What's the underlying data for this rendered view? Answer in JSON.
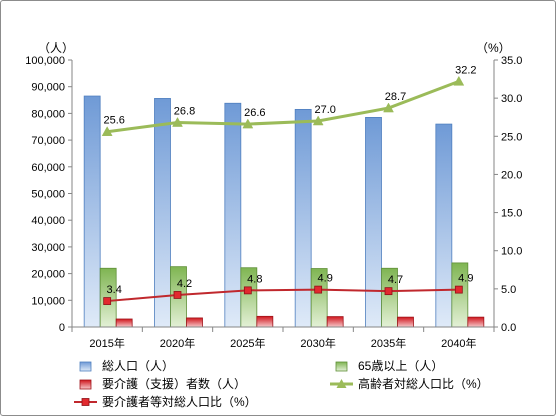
{
  "chart_data": {
    "type": "bar",
    "categories": [
      "2015年",
      "2020年",
      "2025年",
      "2030年",
      "2035年",
      "2040年"
    ],
    "left_axis": {
      "unit": "（人）",
      "min": 0,
      "max": 100000,
      "step": 10000,
      "tick_labels": [
        "0",
        "10,000",
        "20,000",
        "30,000",
        "40,000",
        "50,000",
        "60,000",
        "70,000",
        "80,000",
        "90,000",
        "100,000"
      ]
    },
    "right_axis": {
      "unit": "（%）",
      "min": 0,
      "max": 35,
      "step": 5,
      "tick_labels": [
        "0.0",
        "5.0",
        "10.0",
        "15.0",
        "20.0",
        "25.0",
        "30.0",
        "35.0"
      ]
    },
    "grid": false,
    "legend_position": "bottom",
    "series": [
      {
        "name": "総人口（人）",
        "kind": "bar",
        "axis": "left",
        "color": "#8eb4e3",
        "values": [
          86500,
          85600,
          83800,
          81500,
          78500,
          76000
        ]
      },
      {
        "name": "65歳以上（人）",
        "kind": "bar",
        "axis": "left",
        "color": "#9bcb6b",
        "values": [
          22000,
          22600,
          22200,
          21900,
          22000,
          24000
        ]
      },
      {
        "name": "要介護（支援）者数（人）",
        "kind": "bar",
        "axis": "left",
        "color": "#e2292e",
        "values": [
          3000,
          3400,
          4000,
          3900,
          3700,
          3700
        ]
      },
      {
        "name": "高齢者対総人口比（%）",
        "kind": "line",
        "axis": "right",
        "color": "#9bbb59",
        "marker": "triangle",
        "values": [
          25.6,
          26.8,
          26.6,
          27.0,
          28.7,
          32.2
        ],
        "labels": [
          "25.6",
          "26.8",
          "26.6",
          "27.0",
          "28.7",
          "32.2"
        ]
      },
      {
        "name": "要介護者等対総人口比（%）",
        "kind": "line",
        "axis": "right",
        "color": "#c0282d",
        "marker": "square",
        "values": [
          3.4,
          4.2,
          4.8,
          4.9,
          4.7,
          4.9
        ],
        "labels": [
          "3.4",
          "4.2",
          "4.8",
          "4.9",
          "4.7",
          "4.9"
        ]
      }
    ]
  }
}
